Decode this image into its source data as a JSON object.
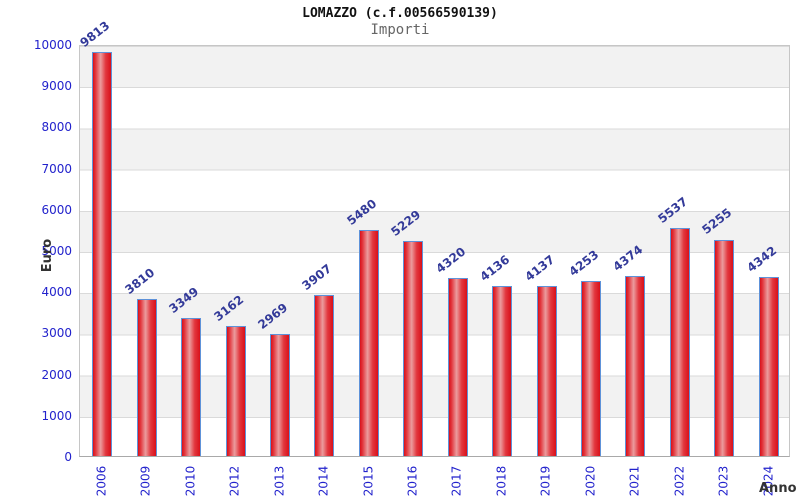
{
  "title": "LOMAZZO (c.f.00566590139)",
  "subtitle": "Importi",
  "axes": {
    "y_label": "Euro",
    "x_label": "Anno"
  },
  "colors": {
    "tick_label": "#2222cc",
    "value_label": "#333a99",
    "bar_edge_red": "#d9101a",
    "bar_center_light": "#eb9c9e",
    "bar_border_blue": "#5e92d9",
    "band_gray": "#f2f2f2",
    "band_white": "#ffffff",
    "grid_line": "#dadada",
    "plot_border": "#c6c6c6",
    "title_color": "#111111",
    "subtitle_color": "#666666",
    "axis_title_color": "#333333"
  },
  "chart_data": {
    "type": "bar",
    "title": "LOMAZZO (c.f.00566590139)",
    "subtitle": "Importi",
    "xlabel": "Anno",
    "ylabel": "Euro",
    "categories": [
      "2006",
      "2009",
      "2010",
      "2012",
      "2013",
      "2014",
      "2015",
      "2016",
      "2017",
      "2018",
      "2019",
      "2020",
      "2021",
      "2022",
      "2023",
      "2024"
    ],
    "values": [
      9813,
      3810,
      3349,
      3162,
      2969,
      3907,
      5480,
      5229,
      4320,
      4136,
      4137,
      4253,
      4374,
      5537,
      5255,
      4342
    ],
    "ylim": [
      0,
      10000
    ],
    "ytick_interval": 1000,
    "yticks": [
      0,
      1000,
      2000,
      3000,
      4000,
      5000,
      6000,
      7000,
      8000,
      9000,
      10000
    ],
    "grid": true,
    "legend_position": "none",
    "bar_value_labels": true,
    "background_bands": "alternating horizontal gray/white per 1000"
  }
}
